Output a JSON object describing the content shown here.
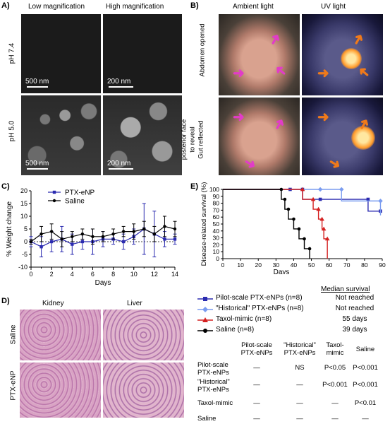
{
  "panels": {
    "A": {
      "letter": "A)",
      "col_low": "Low magnification",
      "col_high": "High magnification",
      "row1": "pH 7.4",
      "row2": "pH 5.0",
      "scale_low_1": "500 nm",
      "scale_high_1": "200 nm",
      "scale_low_2": "500 nm",
      "scale_high_2": "200 nm"
    },
    "B": {
      "letter": "B)",
      "col_ambient": "Ambient light",
      "col_uv": "UV light",
      "row1": "Abdomen opened",
      "row2a": "Gut reflected",
      "row2b": "to reveal",
      "row2c": "posterior face"
    },
    "C": {
      "letter": "C)"
    },
    "D": {
      "letter": "D)",
      "col_kidney": "Kidney",
      "col_liver": "Liver",
      "row1": "Saline",
      "row2": "PTX-eNP"
    },
    "E": {
      "letter": "E)",
      "median_header": "Median survival",
      "legend": [
        {
          "label": "Pilot-scale PTX-eNPs (n=8)",
          "median": "Not reached",
          "color": "#2b2bb0",
          "marker": "square"
        },
        {
          "label": "\"Historical\" PTX-eNPs (n=8)",
          "median": "Not reached",
          "color": "#7a9cf0",
          "marker": "diamond"
        },
        {
          "label": "Taxol-mimic (n=8)",
          "median": "55 days",
          "color": "#d42020",
          "marker": "triangle"
        },
        {
          "label": "Saline (n=8)",
          "median": "39 days",
          "color": "#000000",
          "marker": "circle"
        }
      ],
      "table": {
        "col_headers": [
          [
            "Pilot-scale",
            "PTX-eNPs"
          ],
          [
            "\"Historical\"",
            "PTX-eNPs"
          ],
          [
            "Taxol-",
            "mimic"
          ],
          [
            "Saline"
          ]
        ],
        "rows": [
          {
            "label": [
              "Pilot-scale",
              "PTX-eNPs"
            ],
            "cells": [
              "—",
              "NS",
              "P<0.05",
              "P<0.001"
            ]
          },
          {
            "label": [
              "\"Historical\"",
              "PTX-eNPs"
            ],
            "cells": [
              "—",
              "—",
              "P<0.001",
              "P<0.001"
            ]
          },
          {
            "label": [
              "Taxol-mimic"
            ],
            "cells": [
              "—",
              "—",
              "—",
              "P<0.01"
            ]
          },
          {
            "label": [
              "Saline"
            ],
            "cells": [
              "—",
              "—",
              "—",
              "—"
            ]
          }
        ]
      }
    }
  },
  "chart_data": [
    {
      "type": "line",
      "panel": "C",
      "xlabel": "Days",
      "ylabel": "% Weight change",
      "xlim": [
        0,
        14
      ],
      "ylim": [
        -10,
        20
      ],
      "xticks": [
        0,
        2,
        4,
        6,
        8,
        10,
        12,
        14
      ],
      "yticks": [
        -10,
        -5,
        0,
        5,
        10,
        15,
        20
      ],
      "legend_position": "top-left",
      "series": [
        {
          "name": "PTX-eNP",
          "color": "#2b2bb0",
          "marker": "square",
          "x": [
            0,
            1,
            2,
            3,
            4,
            5,
            6,
            7,
            8,
            9,
            10,
            11,
            12,
            13,
            14
          ],
          "y": [
            0,
            -2,
            0,
            1,
            -1,
            0,
            0,
            1,
            1,
            0,
            2,
            5,
            3,
            1,
            1
          ],
          "err": [
            2,
            4,
            4,
            5,
            4,
            3,
            5,
            3,
            2,
            3,
            3,
            10,
            9,
            3,
            2
          ]
        },
        {
          "name": "Saline",
          "color": "#000000",
          "marker": "circle",
          "x": [
            0,
            1,
            2,
            3,
            4,
            5,
            6,
            7,
            8,
            9,
            10,
            11,
            12,
            13,
            14
          ],
          "y": [
            0,
            3,
            4,
            1,
            2,
            3,
            2,
            2,
            3,
            4,
            4,
            5,
            3,
            6,
            5
          ],
          "err": [
            1,
            3,
            3,
            3,
            2,
            2,
            3,
            2,
            2,
            2,
            3,
            3,
            3,
            4,
            3
          ]
        }
      ]
    },
    {
      "type": "line",
      "panel": "E",
      "xlabel": "Days",
      "ylabel": "Disease-related survival (%)",
      "xlim": [
        0,
        90
      ],
      "ylim": [
        0,
        100
      ],
      "xticks": [
        0,
        10,
        20,
        30,
        40,
        50,
        60,
        70,
        80,
        90
      ],
      "yticks": [
        0,
        10,
        20,
        30,
        40,
        50,
        60,
        70,
        80,
        90,
        100
      ],
      "step": true,
      "series": [
        {
          "name": "Pilot-scale PTX-eNPs (n=8)",
          "color": "#2b2bb0",
          "marker": "square",
          "x": [
            0,
            38,
            45,
            55,
            82,
            89
          ],
          "y": [
            100,
            100,
            85.7,
            85.7,
            68.6,
            68.6
          ]
        },
        {
          "name": "\"Historical\" PTX-eNPs (n=8)",
          "color": "#7a9cf0",
          "marker": "diamond",
          "x": [
            0,
            55,
            67,
            89
          ],
          "y": [
            100,
            100,
            83.3,
            62.5
          ]
        },
        {
          "name": "Taxol-mimic (n=8)",
          "color": "#d42020",
          "marker": "triangle",
          "x": [
            0,
            45,
            51,
            54,
            56,
            57,
            59
          ],
          "y": [
            100,
            85.7,
            71.4,
            57.1,
            42.9,
            28.6,
            0
          ]
        },
        {
          "name": "Saline (n=8)",
          "color": "#000000",
          "marker": "circle",
          "x": [
            0,
            33,
            35,
            37,
            40,
            43,
            46,
            49
          ],
          "y": [
            100,
            85.7,
            71.4,
            57.1,
            42.9,
            28.6,
            14.3,
            0
          ]
        }
      ]
    }
  ]
}
